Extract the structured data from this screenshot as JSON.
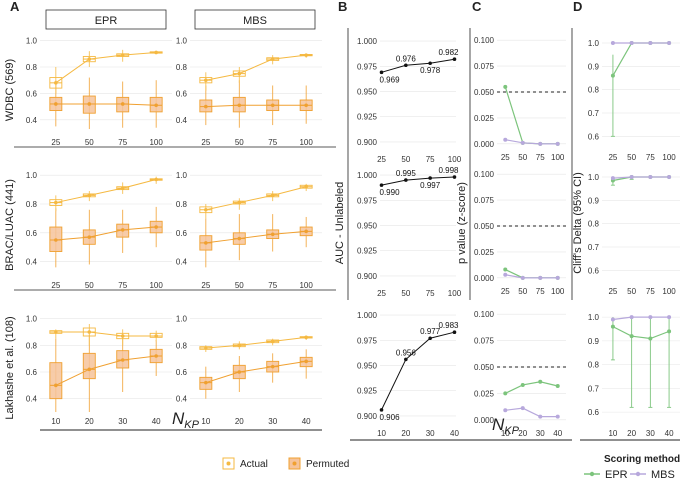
{
  "colors": {
    "actual": "#f5b942",
    "permuted": "#f0a030",
    "permuted_fill": "#f6c39a",
    "epr": "#7cc47c",
    "mbs": "#b7a8dc",
    "panel_bg": "#ffffff",
    "grid": "#e6e6e6"
  },
  "panel_letters": [
    "A",
    "B",
    "C",
    "D"
  ],
  "strip_labels": [
    "EPR",
    "MBS"
  ],
  "row_labels": [
    "WDBC (569)",
    "BRAC/LUAC (441)",
    "Lakhashe et al. (108)"
  ],
  "xlabel_main": "N",
  "xlabel_sub": "KP",
  "legend_ab": {
    "actual": "Actual",
    "permuted": "Permuted"
  },
  "legend_d": {
    "title": "Scoring method",
    "epr": "EPR",
    "mbs": "MBS"
  },
  "chart_data": [
    {
      "type": "box",
      "title": "A - WDBC (569) - EPR",
      "categories": [
        "25",
        "50",
        "75",
        "100"
      ],
      "ylim": [
        0.3,
        1.05
      ],
      "yticks": [
        "0.4",
        "0.6",
        "0.8",
        "1.0"
      ],
      "actual": {
        "median": [
          0.68,
          0.86,
          0.89,
          0.91
        ],
        "q1": [
          0.64,
          0.84,
          0.88,
          0.905
        ],
        "q3": [
          0.72,
          0.88,
          0.9,
          0.915
        ],
        "low": [
          0.6,
          0.8,
          0.84,
          0.9
        ],
        "high": [
          0.8,
          0.92,
          0.93,
          0.92
        ]
      },
      "permuted": {
        "median": [
          0.52,
          0.52,
          0.52,
          0.51
        ],
        "q1": [
          0.47,
          0.45,
          0.46,
          0.46
        ],
        "q3": [
          0.57,
          0.58,
          0.57,
          0.57
        ],
        "low": [
          0.35,
          0.33,
          0.34,
          0.34
        ],
        "high": [
          0.7,
          0.72,
          0.69,
          0.7
        ]
      }
    },
    {
      "type": "box",
      "title": "A - WDBC (569) - MBS",
      "categories": [
        "25",
        "50",
        "75",
        "100"
      ],
      "ylim": [
        0.3,
        1.05
      ],
      "yticks": [
        "0.4",
        "0.6",
        "0.8",
        "1.0"
      ],
      "actual": {
        "median": [
          0.7,
          0.75,
          0.86,
          0.89
        ],
        "q1": [
          0.68,
          0.73,
          0.85,
          0.885
        ],
        "q3": [
          0.72,
          0.77,
          0.87,
          0.895
        ],
        "low": [
          0.62,
          0.68,
          0.82,
          0.87
        ],
        "high": [
          0.76,
          0.8,
          0.89,
          0.9
        ]
      },
      "permuted": {
        "median": [
          0.5,
          0.51,
          0.51,
          0.51
        ],
        "q1": [
          0.46,
          0.46,
          0.47,
          0.47
        ],
        "q3": [
          0.55,
          0.57,
          0.55,
          0.55
        ],
        "low": [
          0.36,
          0.34,
          0.36,
          0.37
        ],
        "high": [
          0.66,
          0.7,
          0.66,
          0.66
        ]
      }
    },
    {
      "type": "box",
      "title": "A - BRAC/LUAC (441) - EPR",
      "categories": [
        "25",
        "50",
        "75",
        "100"
      ],
      "ylim": [
        0.3,
        1.05
      ],
      "yticks": [
        "0.4",
        "0.6",
        "0.8",
        "1.0"
      ],
      "actual": {
        "median": [
          0.81,
          0.86,
          0.91,
          0.97
        ],
        "q1": [
          0.79,
          0.85,
          0.9,
          0.965
        ],
        "q3": [
          0.83,
          0.87,
          0.92,
          0.975
        ],
        "low": [
          0.75,
          0.82,
          0.87,
          0.94
        ],
        "high": [
          0.86,
          0.89,
          0.95,
          0.99
        ]
      },
      "permuted": {
        "median": [
          0.55,
          0.57,
          0.62,
          0.64
        ],
        "q1": [
          0.47,
          0.52,
          0.57,
          0.6
        ],
        "q3": [
          0.64,
          0.62,
          0.66,
          0.68
        ],
        "low": [
          0.36,
          0.38,
          0.46,
          0.5
        ],
        "high": [
          0.77,
          0.76,
          0.76,
          0.78
        ]
      }
    },
    {
      "type": "box",
      "title": "A - BRAC/LUAC (441) - MBS",
      "categories": [
        "25",
        "50",
        "75",
        "100"
      ],
      "ylim": [
        0.3,
        1.05
      ],
      "yticks": [
        "0.4",
        "0.6",
        "0.8",
        "1.0"
      ],
      "actual": {
        "median": [
          0.76,
          0.81,
          0.86,
          0.92
        ],
        "q1": [
          0.74,
          0.8,
          0.85,
          0.91
        ],
        "q3": [
          0.78,
          0.82,
          0.87,
          0.93
        ],
        "low": [
          0.7,
          0.76,
          0.82,
          0.89
        ],
        "high": [
          0.8,
          0.84,
          0.89,
          0.94
        ]
      },
      "permuted": {
        "median": [
          0.53,
          0.56,
          0.59,
          0.61
        ],
        "q1": [
          0.48,
          0.52,
          0.56,
          0.58
        ],
        "q3": [
          0.58,
          0.6,
          0.62,
          0.64
        ],
        "low": [
          0.36,
          0.41,
          0.47,
          0.5
        ],
        "high": [
          0.7,
          0.73,
          0.73,
          0.71
        ]
      }
    },
    {
      "type": "box",
      "title": "A - Lakhashe et al. (108) - EPR",
      "categories": [
        "10",
        "20",
        "30",
        "40"
      ],
      "ylim": [
        0.3,
        1.05
      ],
      "yticks": [
        "0.4",
        "0.6",
        "0.8",
        "1.0"
      ],
      "actual": {
        "median": [
          0.9,
          0.9,
          0.87,
          0.87
        ],
        "q1": [
          0.89,
          0.87,
          0.85,
          0.86
        ],
        "q3": [
          0.91,
          0.93,
          0.89,
          0.89
        ],
        "low": [
          0.85,
          0.8,
          0.8,
          0.83
        ],
        "high": [
          0.92,
          0.96,
          0.92,
          0.91
        ]
      },
      "permuted": {
        "median": [
          0.5,
          0.62,
          0.69,
          0.72
        ],
        "q1": [
          0.4,
          0.55,
          0.63,
          0.67
        ],
        "q3": [
          0.67,
          0.74,
          0.76,
          0.77
        ],
        "low": [
          0.3,
          0.3,
          0.45,
          0.57
        ],
        "high": [
          0.85,
          0.88,
          0.87,
          0.84
        ]
      }
    },
    {
      "type": "box",
      "title": "A - Lakhashe et al. (108) - MBS",
      "categories": [
        "10",
        "20",
        "30",
        "40"
      ],
      "ylim": [
        0.3,
        1.05
      ],
      "yticks": [
        "0.4",
        "0.6",
        "0.8",
        "1.0"
      ],
      "actual": {
        "median": [
          0.78,
          0.8,
          0.83,
          0.86
        ],
        "q1": [
          0.77,
          0.79,
          0.82,
          0.855
        ],
        "q3": [
          0.79,
          0.81,
          0.84,
          0.865
        ],
        "low": [
          0.75,
          0.77,
          0.8,
          0.84
        ],
        "high": [
          0.8,
          0.83,
          0.85,
          0.87
        ]
      },
      "permuted": {
        "median": [
          0.52,
          0.6,
          0.64,
          0.68
        ],
        "q1": [
          0.47,
          0.55,
          0.6,
          0.64
        ],
        "q3": [
          0.56,
          0.65,
          0.68,
          0.71
        ],
        "low": [
          0.4,
          0.45,
          0.52,
          0.55
        ],
        "high": [
          0.64,
          0.72,
          0.74,
          0.77
        ]
      }
    },
    {
      "type": "line",
      "title": "B - WDBC",
      "ylabel": "AUC - Unlabeled",
      "x": [
        25,
        50,
        75,
        100
      ],
      "xticks": [
        "25",
        "50",
        "75",
        "100"
      ],
      "y": [
        0.969,
        0.976,
        0.978,
        0.982
      ],
      "labels": [
        "0.969",
        "0.976",
        "0.978",
        "0.982"
      ],
      "ylim": [
        0.892,
        1.005
      ],
      "yticks": [
        "0.900",
        "0.925",
        "0.950",
        "0.975",
        "1.000"
      ]
    },
    {
      "type": "line",
      "title": "B - BRAC/LUAC",
      "ylabel": "AUC - Unlabeled",
      "x": [
        25,
        50,
        75,
        100
      ],
      "xticks": [
        "25",
        "50",
        "75",
        "100"
      ],
      "y": [
        0.99,
        0.995,
        0.997,
        0.998
      ],
      "labels": [
        "0.990",
        "0.995",
        "0.997",
        "0.998"
      ],
      "ylim": [
        0.892,
        1.005
      ],
      "yticks": [
        "0.900",
        "0.925",
        "0.950",
        "0.975",
        "1.000"
      ]
    },
    {
      "type": "line",
      "title": "B - Lakhashe",
      "ylabel": "AUC - Unlabeled",
      "x": [
        10,
        20,
        30,
        40
      ],
      "xticks": [
        "10",
        "20",
        "30",
        "40"
      ],
      "y": [
        0.906,
        0.956,
        0.977,
        0.983
      ],
      "labels": [
        "0.906",
        "0.956",
        "0.977",
        "0.983"
      ],
      "ylim": [
        0.892,
        1.005
      ],
      "yticks": [
        "0.900",
        "0.925",
        "0.950",
        "0.975",
        "1.000"
      ]
    },
    {
      "type": "line",
      "title": "C - WDBC",
      "ylabel": "p value (z-score)",
      "x": [
        25,
        50,
        75,
        100
      ],
      "xticks": [
        "25",
        "50",
        "75",
        "100"
      ],
      "threshold": 0.05,
      "series": [
        {
          "name": "EPR",
          "values": [
            0.055,
            0.001,
            0.0,
            0.0
          ]
        },
        {
          "name": "MBS",
          "values": [
            0.004,
            0.001,
            0.0,
            0.0
          ]
        }
      ],
      "ylim": [
        -0.004,
        0.104
      ],
      "yticks": [
        "0.000",
        "0.025",
        "0.050",
        "0.075",
        "0.100"
      ]
    },
    {
      "type": "line",
      "title": "C - BRAC/LUAC",
      "ylabel": "p value (z-score)",
      "x": [
        25,
        50,
        75,
        100
      ],
      "xticks": [
        "25",
        "50",
        "75",
        "100"
      ],
      "threshold": 0.05,
      "series": [
        {
          "name": "EPR",
          "values": [
            0.008,
            0.0,
            0.0,
            0.0
          ]
        },
        {
          "name": "MBS",
          "values": [
            0.003,
            0.0,
            0.0,
            0.0
          ]
        }
      ],
      "ylim": [
        -0.004,
        0.104
      ],
      "yticks": [
        "0.000",
        "0.025",
        "0.050",
        "0.075",
        "0.100"
      ]
    },
    {
      "type": "line",
      "title": "C - Lakhashe",
      "ylabel": "p value (z-score)",
      "x": [
        10,
        20,
        30,
        40
      ],
      "xticks": [
        "10",
        "20",
        "30",
        "40"
      ],
      "threshold": 0.05,
      "series": [
        {
          "name": "EPR",
          "values": [
            0.025,
            0.033,
            0.036,
            0.032
          ]
        },
        {
          "name": "MBS",
          "values": [
            0.009,
            0.011,
            0.003,
            0.003
          ]
        }
      ],
      "ylim": [
        -0.004,
        0.104
      ],
      "yticks": [
        "0.000",
        "0.025",
        "0.050",
        "0.075",
        "0.100"
      ]
    },
    {
      "type": "line",
      "title": "D - WDBC",
      "ylabel": "Cliff's Delta (95% CI)",
      "x": [
        25,
        50,
        75,
        100
      ],
      "xticks": [
        "25",
        "50",
        "75",
        "100"
      ],
      "series": [
        {
          "name": "EPR",
          "values": [
            0.86,
            1.0,
            1.0,
            1.0
          ],
          "ci_low": [
            0.6,
            1.0,
            1.0,
            1.0
          ],
          "ci_high": [
            0.95,
            1.0,
            1.0,
            1.0
          ]
        },
        {
          "name": "MBS",
          "values": [
            1.0,
            1.0,
            1.0,
            1.0
          ]
        }
      ],
      "ylim": [
        0.55,
        1.03
      ],
      "yticks": [
        "0.6",
        "0.7",
        "0.8",
        "0.9",
        "1.0"
      ]
    },
    {
      "type": "line",
      "title": "D - BRAC/LUAC",
      "ylabel": "Cliff's Delta (95% CI)",
      "x": [
        25,
        50,
        75,
        100
      ],
      "xticks": [
        "25",
        "50",
        "75",
        "100"
      ],
      "series": [
        {
          "name": "EPR",
          "values": [
            0.985,
            1.0,
            1.0,
            1.0
          ],
          "ci_low": [
            0.965,
            0.99,
            1.0,
            1.0
          ],
          "ci_high": [
            1.0,
            1.0,
            1.0,
            1.0
          ]
        },
        {
          "name": "MBS",
          "values": [
            0.995,
            1.0,
            1.0,
            1.0
          ]
        }
      ],
      "ylim": [
        0.55,
        1.03
      ],
      "yticks": [
        "0.6",
        "0.7",
        "0.8",
        "0.9",
        "1.0"
      ]
    },
    {
      "type": "line",
      "title": "D - Lakhashe",
      "ylabel": "Cliff's Delta (95% CI)",
      "x": [
        10,
        20,
        30,
        40
      ],
      "xticks": [
        "10",
        "20",
        "30",
        "40"
      ],
      "series": [
        {
          "name": "EPR",
          "values": [
            0.96,
            0.92,
            0.91,
            0.94
          ],
          "ci_low": [
            0.82,
            0.62,
            0.62,
            0.62
          ],
          "ci_high": [
            1.0,
            1.0,
            1.0,
            1.0
          ]
        },
        {
          "name": "MBS",
          "values": [
            0.99,
            1.0,
            1.0,
            1.0
          ]
        }
      ],
      "ylim": [
        0.55,
        1.03
      ],
      "yticks": [
        "0.6",
        "0.7",
        "0.8",
        "0.9",
        "1.0"
      ]
    }
  ]
}
